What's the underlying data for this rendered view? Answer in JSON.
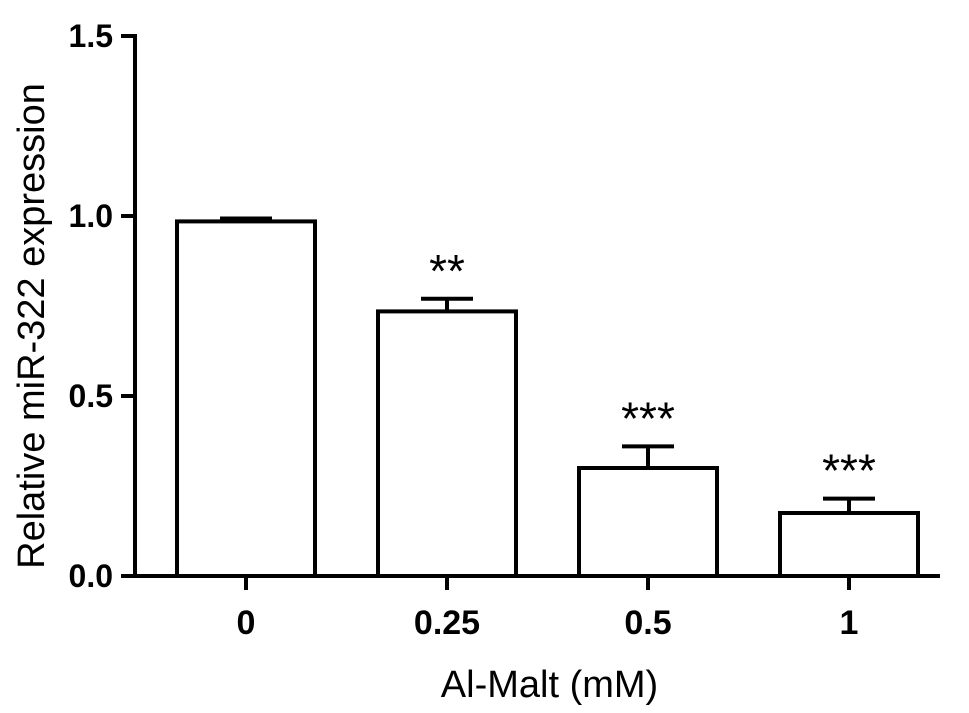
{
  "chart_data": {
    "type": "bar",
    "title": "",
    "xlabel": "Al-Malt (mM)",
    "ylabel": "Relative miR-322 expression",
    "categories": [
      "0",
      "0.25",
      "0.5",
      "1"
    ],
    "values": [
      0.985,
      0.735,
      0.3,
      0.175
    ],
    "errors": [
      0.008,
      0.035,
      0.06,
      0.04
    ],
    "annotations": [
      "",
      "**",
      "***",
      "***"
    ],
    "ylim": [
      0,
      1.5
    ],
    "yticks": [
      0.0,
      0.5,
      1.0,
      1.5
    ],
    "ytick_labels": [
      "0.0",
      "0.5",
      "1.0",
      "1.5"
    ],
    "grid": false,
    "legend": "none",
    "bar_fill": "#ffffff",
    "bar_edge": "#000000"
  }
}
